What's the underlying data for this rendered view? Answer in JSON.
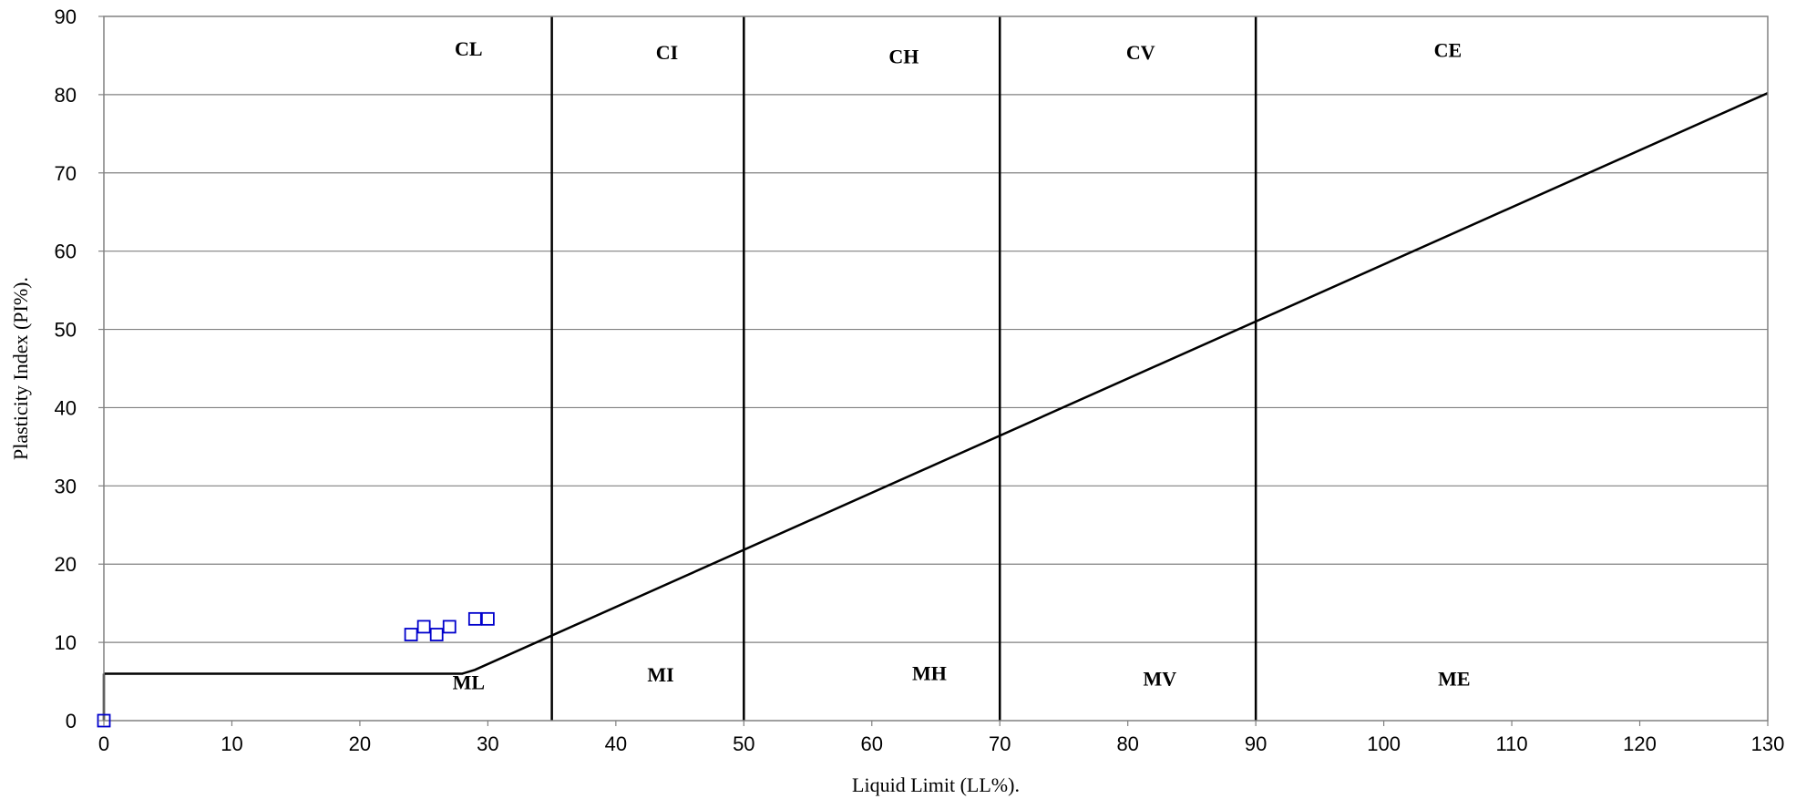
{
  "chart_data": {
    "type": "scatter",
    "xlabel": "Liquid Limit (LL%).",
    "ylabel": "Plasticity Index (PI%).",
    "xlim": [
      0,
      130
    ],
    "ylim": [
      0,
      90
    ],
    "x_ticks": [
      0,
      10,
      20,
      30,
      40,
      50,
      60,
      70,
      80,
      90,
      100,
      110,
      120,
      130
    ],
    "y_ticks": [
      0,
      10,
      20,
      30,
      40,
      50,
      60,
      70,
      80,
      90
    ],
    "grid": "horizontal",
    "legend": "none",
    "colors": {
      "points": "#0000cc",
      "lines": "#000000",
      "grid": "#808080"
    },
    "zone_boundaries_ll": [
      35,
      50,
      70,
      90
    ],
    "a_line": [
      {
        "x": 0,
        "y": 6
      },
      {
        "x": 28,
        "y": 6
      },
      {
        "x": 29,
        "y": 6.5
      },
      {
        "x": 130,
        "y": 80.2
      }
    ],
    "zones_upper": [
      {
        "label": "CL",
        "x": 28.5,
        "y": 85
      },
      {
        "label": "CI",
        "x": 44,
        "y": 84.5
      },
      {
        "label": "CH",
        "x": 62.5,
        "y": 84
      },
      {
        "label": "CV",
        "x": 81,
        "y": 84.5
      },
      {
        "label": "CE",
        "x": 105,
        "y": 84.8
      }
    ],
    "zones_lower": [
      {
        "label": "ML",
        "x": 28.5,
        "y": 4
      },
      {
        "label": "MI",
        "x": 43.5,
        "y": 5
      },
      {
        "label": "MH",
        "x": 64.5,
        "y": 5.2
      },
      {
        "label": "MV",
        "x": 82.5,
        "y": 4.5
      },
      {
        "label": "ME",
        "x": 105.5,
        "y": 4.5
      }
    ],
    "points": [
      {
        "x": 0,
        "y": 0
      },
      {
        "x": 24,
        "y": 11
      },
      {
        "x": 25,
        "y": 12
      },
      {
        "x": 26,
        "y": 11
      },
      {
        "x": 27,
        "y": 12
      },
      {
        "x": 29,
        "y": 13
      },
      {
        "x": 30,
        "y": 13
      }
    ]
  }
}
